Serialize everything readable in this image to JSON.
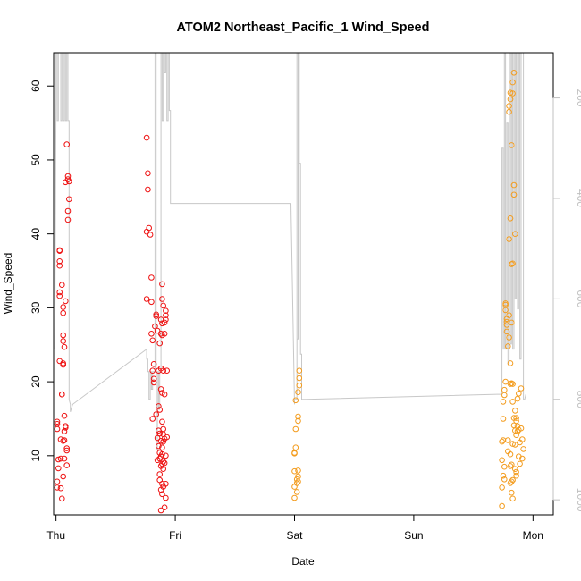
{
  "chart_data": {
    "type": "scatter",
    "title": "ATOM2 Northeast_Pacific_1 Wind_Speed",
    "xlabel": "Date",
    "ylabel": "Wind_Speed",
    "x_ticks": [
      "Thu",
      "Fri",
      "Sat",
      "Sun",
      "Mon"
    ],
    "xlim": [
      -0.02,
      4.17
    ],
    "ylim": [
      2.0,
      64.5
    ],
    "y_ticks": [
      10,
      20,
      30,
      40,
      50,
      60
    ],
    "right_axis": {
      "ticks": [
        200,
        400,
        600,
        800,
        1000
      ],
      "lim": [
        1030,
        110
      ],
      "color": "#c0c0c0"
    },
    "colors": {
      "series_a": "#ee1111",
      "series_b": "#f39c1e",
      "line": "#c8c8c8",
      "frame": "#000000"
    },
    "series": [
      {
        "color": "#ee1111",
        "points": [
          [
            0.01,
            6.5
          ],
          [
            0.01,
            5.7
          ],
          [
            0.01,
            13.6
          ],
          [
            0.01,
            14.3
          ],
          [
            0.01,
            14.6
          ],
          [
            0.02,
            8.3
          ],
          [
            0.02,
            9.5
          ],
          [
            0.03,
            22.8
          ],
          [
            0.03,
            31.6
          ],
          [
            0.03,
            32.1
          ],
          [
            0.03,
            35.7
          ],
          [
            0.03,
            36.3
          ],
          [
            0.03,
            37.7
          ],
          [
            0.03,
            37.8
          ],
          [
            0.04,
            5.6
          ],
          [
            0.04,
            9.6
          ],
          [
            0.04,
            12.2
          ],
          [
            0.05,
            4.2
          ],
          [
            0.05,
            18.3
          ],
          [
            0.05,
            18.3
          ],
          [
            0.05,
            33.1
          ],
          [
            0.06,
            7.2
          ],
          [
            0.06,
            12.0
          ],
          [
            0.06,
            22.3
          ],
          [
            0.06,
            22.5
          ],
          [
            0.06,
            25.5
          ],
          [
            0.06,
            26.3
          ],
          [
            0.06,
            29.3
          ],
          [
            0.06,
            30.1
          ],
          [
            0.07,
            9.6
          ],
          [
            0.07,
            12.1
          ],
          [
            0.07,
            13.3
          ],
          [
            0.07,
            15.4
          ],
          [
            0.07,
            24.7
          ],
          [
            0.08,
            13.8
          ],
          [
            0.08,
            14.0
          ],
          [
            0.08,
            30.9
          ],
          [
            0.08,
            47.0
          ],
          [
            0.09,
            8.7
          ],
          [
            0.09,
            10.7
          ],
          [
            0.09,
            11.0
          ],
          [
            0.09,
            52.1
          ],
          [
            0.1,
            41.9
          ],
          [
            0.1,
            43.1
          ],
          [
            0.1,
            47.4
          ],
          [
            0.1,
            47.8
          ],
          [
            0.11,
            44.7
          ],
          [
            0.11,
            47.1
          ],
          [
            0.76,
            31.2
          ],
          [
            0.76,
            40.3
          ],
          [
            0.76,
            53.0
          ],
          [
            0.77,
            46.0
          ],
          [
            0.77,
            48.2
          ],
          [
            0.78,
            40.8
          ],
          [
            0.79,
            39.9
          ],
          [
            0.8,
            26.5
          ],
          [
            0.8,
            30.8
          ],
          [
            0.8,
            34.1
          ],
          [
            0.81,
            25.6
          ],
          [
            0.81,
            15.0
          ],
          [
            0.81,
            21.5
          ],
          [
            0.82,
            22.4
          ],
          [
            0.82,
            19.9
          ],
          [
            0.82,
            20.4
          ],
          [
            0.83,
            27.5
          ],
          [
            0.84,
            29.1
          ],
          [
            0.84,
            28.9
          ],
          [
            0.84,
            15.6
          ],
          [
            0.85,
            26.9
          ],
          [
            0.85,
            9.4
          ],
          [
            0.85,
            12.4
          ],
          [
            0.86,
            21.5
          ],
          [
            0.86,
            16.7
          ],
          [
            0.86,
            13.4
          ],
          [
            0.86,
            11.3
          ],
          [
            0.87,
            25.2
          ],
          [
            0.87,
            16.2
          ],
          [
            0.87,
            13.0
          ],
          [
            0.87,
            10.4
          ],
          [
            0.87,
            9.6
          ],
          [
            0.87,
            7.5
          ],
          [
            0.87,
            6.7
          ],
          [
            0.88,
            28.4
          ],
          [
            0.88,
            26.5
          ],
          [
            0.88,
            21.8
          ],
          [
            0.88,
            19.0
          ],
          [
            0.88,
            12.0
          ],
          [
            0.88,
            9.9
          ],
          [
            0.88,
            8.6
          ],
          [
            0.88,
            5.4
          ],
          [
            0.88,
            2.6
          ],
          [
            0.89,
            31.2
          ],
          [
            0.89,
            33.2
          ],
          [
            0.89,
            27.9
          ],
          [
            0.89,
            26.3
          ],
          [
            0.89,
            18.5
          ],
          [
            0.89,
            14.6
          ],
          [
            0.89,
            11.1
          ],
          [
            0.89,
            10.2
          ],
          [
            0.89,
            8.9
          ],
          [
            0.89,
            6.2
          ],
          [
            0.89,
            4.8
          ],
          [
            0.9,
            30.3
          ],
          [
            0.9,
            21.5
          ],
          [
            0.9,
            13.6
          ],
          [
            0.9,
            12.9
          ],
          [
            0.9,
            11.9
          ],
          [
            0.9,
            9.2
          ],
          [
            0.9,
            8.2
          ],
          [
            0.9,
            5.8
          ],
          [
            0.91,
            28.0
          ],
          [
            0.91,
            26.5
          ],
          [
            0.91,
            18.3
          ],
          [
            0.91,
            12.3
          ],
          [
            0.91,
            9.0
          ],
          [
            0.91,
            3.0
          ],
          [
            0.92,
            29.6
          ],
          [
            0.92,
            29.0
          ],
          [
            0.92,
            28.4
          ],
          [
            0.92,
            10.0
          ],
          [
            0.92,
            6.2
          ],
          [
            0.92,
            4.3
          ],
          [
            0.93,
            21.5
          ],
          [
            0.93,
            12.5
          ]
        ]
      },
      {
        "color": "#f39c1e",
        "points": [
          [
            2.0,
            4.3
          ],
          [
            2.0,
            5.8
          ],
          [
            2.0,
            7.9
          ],
          [
            2.0,
            10.3
          ],
          [
            2.0,
            10.4
          ],
          [
            2.01,
            11.1
          ],
          [
            2.01,
            13.6
          ],
          [
            2.01,
            17.5
          ],
          [
            2.02,
            6.3
          ],
          [
            2.02,
            6.8
          ],
          [
            2.02,
            5.1
          ],
          [
            2.03,
            6.5
          ],
          [
            2.03,
            7.2
          ],
          [
            2.03,
            8.0
          ],
          [
            2.03,
            14.7
          ],
          [
            2.03,
            15.3
          ],
          [
            2.03,
            18.6
          ],
          [
            2.04,
            19.5
          ],
          [
            2.04,
            20.5
          ],
          [
            2.04,
            21.5
          ],
          [
            3.74,
            3.2
          ],
          [
            3.74,
            5.7
          ],
          [
            3.74,
            9.4
          ],
          [
            3.74,
            11.9
          ],
          [
            3.75,
            7.3
          ],
          [
            3.75,
            12.1
          ],
          [
            3.75,
            15.0
          ],
          [
            3.75,
            17.3
          ],
          [
            3.76,
            6.8
          ],
          [
            3.76,
            8.5
          ],
          [
            3.76,
            18.2
          ],
          [
            3.76,
            18.9
          ],
          [
            3.77,
            20.0
          ],
          [
            3.77,
            29.7
          ],
          [
            3.77,
            30.4
          ],
          [
            3.77,
            30.6
          ],
          [
            3.78,
            26.8
          ],
          [
            3.78,
            28.1
          ],
          [
            3.78,
            28.5
          ],
          [
            3.78,
            27.7
          ],
          [
            3.79,
            24.8
          ],
          [
            3.79,
            12.1
          ],
          [
            3.79,
            10.6
          ],
          [
            3.8,
            26.0
          ],
          [
            3.8,
            29.0
          ],
          [
            3.8,
            39.3
          ],
          [
            3.8,
            57.3
          ],
          [
            3.8,
            56.5
          ],
          [
            3.81,
            6.3
          ],
          [
            3.81,
            8.6
          ],
          [
            3.81,
            10.2
          ],
          [
            3.81,
            19.7
          ],
          [
            3.81,
            22.5
          ],
          [
            3.81,
            42.1
          ],
          [
            3.81,
            59.1
          ],
          [
            3.81,
            58.2
          ],
          [
            3.82,
            5.0
          ],
          [
            3.82,
            6.5
          ],
          [
            3.82,
            8.8
          ],
          [
            3.82,
            19.8
          ],
          [
            3.82,
            28.0
          ],
          [
            3.82,
            35.9
          ],
          [
            3.82,
            52.0
          ],
          [
            3.83,
            4.2
          ],
          [
            3.83,
            6.7
          ],
          [
            3.83,
            11.6
          ],
          [
            3.83,
            17.3
          ],
          [
            3.83,
            19.7
          ],
          [
            3.83,
            36.0
          ],
          [
            3.83,
            59.0
          ],
          [
            3.83,
            60.5
          ],
          [
            3.84,
            14.1
          ],
          [
            3.84,
            15.1
          ],
          [
            3.84,
            45.3
          ],
          [
            3.84,
            46.6
          ],
          [
            3.84,
            61.8
          ],
          [
            3.85,
            8.2
          ],
          [
            3.85,
            11.5
          ],
          [
            3.85,
            13.4
          ],
          [
            3.85,
            16.1
          ],
          [
            3.85,
            40.0
          ],
          [
            3.86,
            7.3
          ],
          [
            3.86,
            7.8
          ],
          [
            3.86,
            12.8
          ],
          [
            3.86,
            14.7
          ],
          [
            3.86,
            15.1
          ],
          [
            3.87,
            13.3
          ],
          [
            3.87,
            14.0
          ],
          [
            3.87,
            17.7
          ],
          [
            3.88,
            9.9
          ],
          [
            3.88,
            13.5
          ],
          [
            3.88,
            18.4
          ],
          [
            3.89,
            8.9
          ],
          [
            3.89,
            11.8
          ],
          [
            3.9,
            13.7
          ],
          [
            3.9,
            19.1
          ],
          [
            3.91,
            9.6
          ],
          [
            3.91,
            12.2
          ],
          [
            3.92,
            10.9
          ]
        ]
      }
    ],
    "line_series": [
      [
        -0.01,
        700
      ],
      [
        -0.01,
        700
      ],
      [
        0.0,
        200
      ],
      [
        0.0,
        110
      ],
      [
        0.01,
        110
      ],
      [
        0.01,
        245
      ],
      [
        0.02,
        245
      ],
      [
        0.02,
        110
      ],
      [
        0.04,
        110
      ],
      [
        0.04,
        245
      ],
      [
        0.05,
        245
      ],
      [
        0.05,
        110
      ],
      [
        0.06,
        110
      ],
      [
        0.06,
        245
      ],
      [
        0.07,
        245
      ],
      [
        0.07,
        110
      ],
      [
        0.08,
        110
      ],
      [
        0.08,
        245
      ],
      [
        0.09,
        245
      ],
      [
        0.09,
        110
      ],
      [
        0.1,
        110
      ],
      [
        0.1,
        245
      ],
      [
        0.11,
        245
      ],
      [
        0.11,
        800
      ],
      [
        0.12,
        810
      ],
      [
        0.12,
        825
      ],
      [
        0.14,
        810
      ],
      [
        0.76,
        700
      ],
      [
        0.76,
        720
      ],
      [
        0.77,
        720
      ],
      [
        0.77,
        745
      ],
      [
        0.78,
        745
      ],
      [
        0.78,
        800
      ],
      [
        0.79,
        800
      ],
      [
        0.79,
        745
      ],
      [
        0.8,
        745
      ],
      [
        0.8,
        780
      ],
      [
        0.81,
        780
      ],
      [
        0.81,
        745
      ],
      [
        0.83,
        745
      ],
      [
        0.83,
        110
      ],
      [
        0.84,
        110
      ],
      [
        0.84,
        900
      ],
      [
        0.85,
        900
      ],
      [
        0.85,
        745
      ],
      [
        0.86,
        745
      ],
      [
        0.86,
        820
      ],
      [
        0.87,
        820
      ],
      [
        0.87,
        745
      ],
      [
        0.88,
        745
      ],
      [
        0.88,
        110
      ],
      [
        0.89,
        110
      ],
      [
        0.89,
        245
      ],
      [
        0.9,
        245
      ],
      [
        0.9,
        110
      ],
      [
        0.91,
        110
      ],
      [
        0.91,
        150
      ],
      [
        0.92,
        150
      ],
      [
        0.92,
        110
      ],
      [
        0.93,
        110
      ],
      [
        0.93,
        245
      ],
      [
        0.94,
        245
      ],
      [
        0.94,
        110
      ],
      [
        0.95,
        110
      ],
      [
        0.95,
        225
      ],
      [
        0.96,
        225
      ],
      [
        0.96,
        410
      ],
      [
        1.01,
        410
      ],
      [
        1.97,
        410
      ],
      [
        2.0,
        810
      ],
      [
        2.0,
        800
      ],
      [
        2.02,
        800
      ],
      [
        2.02,
        110
      ],
      [
        2.02,
        680
      ],
      [
        2.03,
        680
      ],
      [
        2.03,
        110
      ],
      [
        2.04,
        110
      ],
      [
        2.04,
        330
      ],
      [
        2.05,
        330
      ],
      [
        2.05,
        710
      ],
      [
        2.06,
        710
      ],
      [
        2.06,
        800
      ],
      [
        2.1,
        800
      ],
      [
        3.7,
        790
      ],
      [
        3.74,
        790
      ],
      [
        3.74,
        300
      ],
      [
        3.75,
        300
      ],
      [
        3.75,
        700
      ],
      [
        3.76,
        700
      ],
      [
        3.76,
        110
      ],
      [
        3.77,
        110
      ],
      [
        3.77,
        700
      ],
      [
        3.78,
        700
      ],
      [
        3.78,
        250
      ],
      [
        3.79,
        250
      ],
      [
        3.79,
        730
      ],
      [
        3.8,
        730
      ],
      [
        3.8,
        110
      ],
      [
        3.81,
        110
      ],
      [
        3.81,
        690
      ],
      [
        3.82,
        690
      ],
      [
        3.82,
        110
      ],
      [
        3.83,
        110
      ],
      [
        3.83,
        700
      ],
      [
        3.84,
        700
      ],
      [
        3.84,
        110
      ],
      [
        3.85,
        110
      ],
      [
        3.85,
        600
      ],
      [
        3.86,
        600
      ],
      [
        3.86,
        110
      ],
      [
        3.87,
        110
      ],
      [
        3.87,
        620
      ],
      [
        3.88,
        620
      ],
      [
        3.88,
        110
      ],
      [
        3.89,
        110
      ],
      [
        3.89,
        720
      ],
      [
        3.9,
        720
      ],
      [
        3.9,
        110
      ],
      [
        3.92,
        110
      ],
      [
        3.92,
        800
      ],
      [
        3.93,
        800
      ],
      [
        3.94,
        790
      ]
    ]
  }
}
